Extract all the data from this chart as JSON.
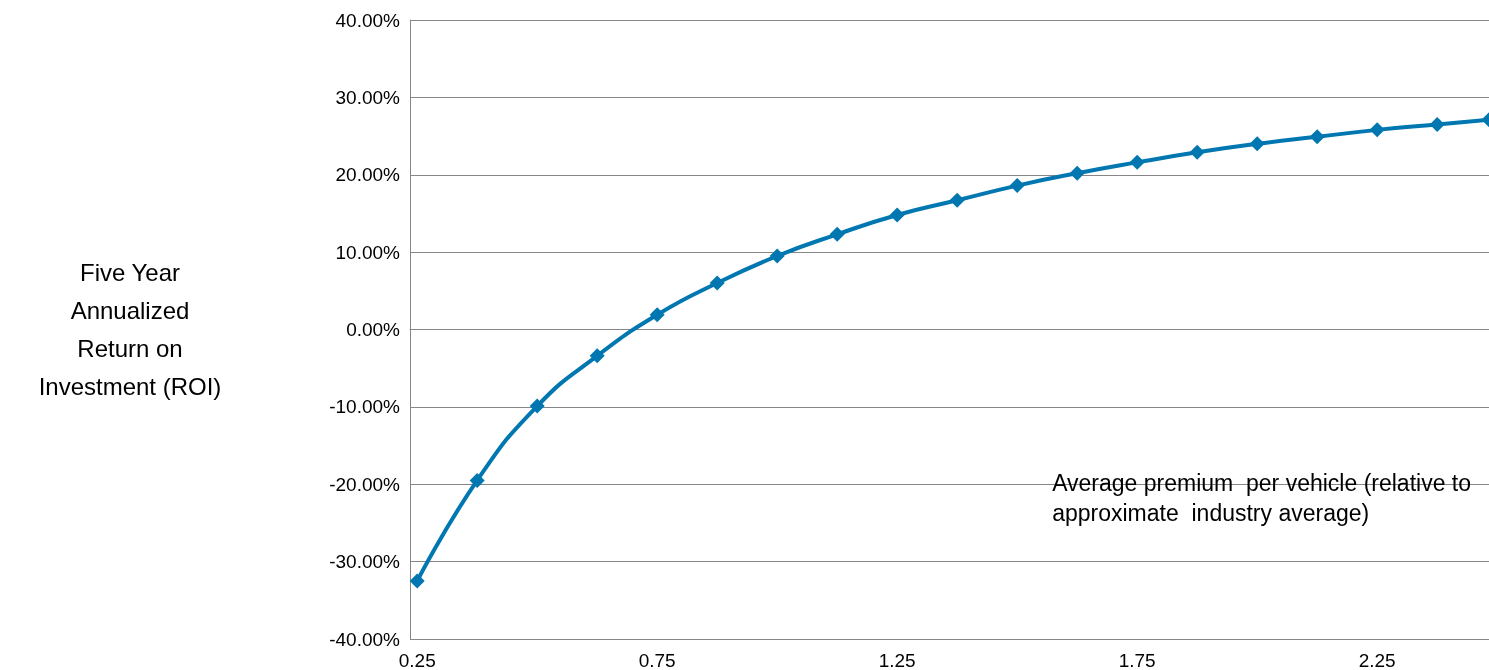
{
  "chart_data": {
    "type": "line",
    "xlabel": "Average premium  per vehicle (relative to\napproximate  industry average)",
    "ylabel": "Five Year\nAnnualized\nReturn on\nInvestment (ROI)",
    "x": [
      0.25,
      0.375,
      0.5,
      0.625,
      0.75,
      0.875,
      1,
      1.125,
      1.25,
      1.375,
      1.5,
      1.625,
      1.75,
      1.875,
      2,
      2.125,
      2.25,
      2.375,
      2.483
    ],
    "series": [
      {
        "color": "#0077b0",
        "values": [
          -32.5,
          -19.5,
          -9.9,
          -3.4,
          1.9,
          6.0,
          9.5,
          12.3,
          14.8,
          16.7,
          18.6,
          20.2,
          21.6,
          22.9,
          24.0,
          24.9,
          25.8,
          26.5,
          27.1
        ]
      }
    ],
    "xlim": [
      0.235,
      2.483
    ],
    "xticks": [
      0.25,
      0.75,
      1.25,
      1.75,
      2.25
    ],
    "ylim": [
      -40,
      40
    ],
    "yticks": [
      {
        "value": -40,
        "label": "-40.00%"
      },
      {
        "value": -30,
        "label": "-30.00%"
      },
      {
        "value": -20,
        "label": "-20.00%"
      },
      {
        "value": -10,
        "label": "-10.00%"
      },
      {
        "value": 0,
        "label": "0.00%"
      },
      {
        "value": 10,
        "label": "10.00%"
      },
      {
        "value": 20,
        "label": "20.00%"
      },
      {
        "value": 30,
        "label": "30.00%"
      },
      {
        "value": 40,
        "label": "40.00%"
      }
    ],
    "grid": "y",
    "marker": "diamond",
    "line_style": "solid"
  }
}
